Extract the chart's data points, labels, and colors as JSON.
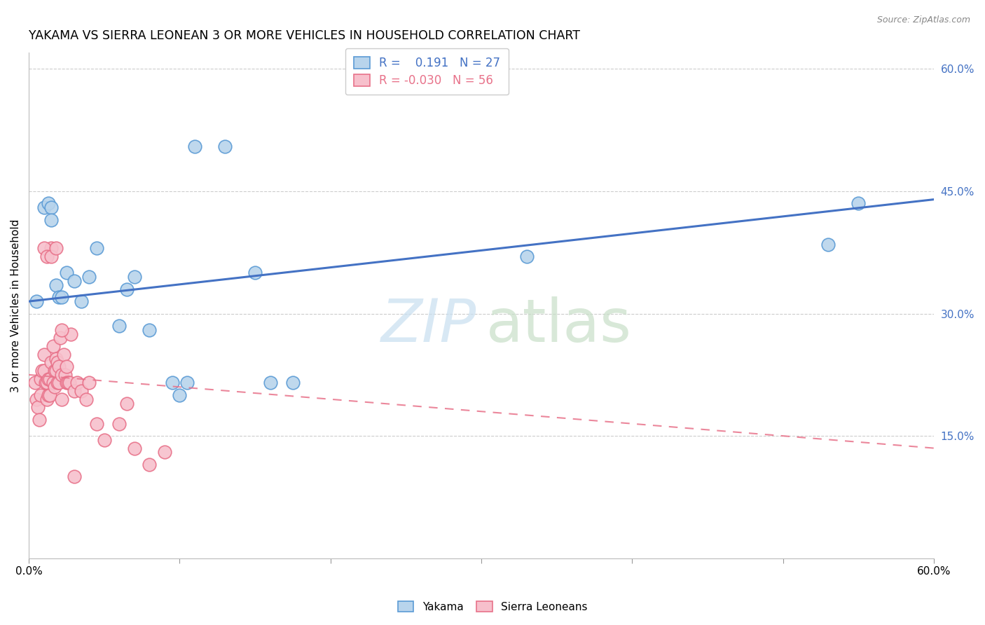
{
  "title": "YAKAMA VS SIERRA LEONEAN 3 OR MORE VEHICLES IN HOUSEHOLD CORRELATION CHART",
  "source": "Source: ZipAtlas.com",
  "ylabel": "3 or more Vehicles in Household",
  "x_min": 0.0,
  "x_max": 0.6,
  "y_min": 0.0,
  "y_max": 0.62,
  "y_ticks_right": [
    0.15,
    0.3,
    0.45,
    0.6
  ],
  "y_tick_labels_right": [
    "15.0%",
    "30.0%",
    "45.0%",
    "60.0%"
  ],
  "color_yakama_fill": "#b8d4ec",
  "color_yakama_edge": "#5b9bd5",
  "color_sierra_fill": "#f7c0cc",
  "color_sierra_edge": "#e8728a",
  "color_line_yakama": "#4472c4",
  "color_line_sierra": "#e8728a",
  "watermark_zip_color": "#daeaf5",
  "watermark_atlas_color": "#d5e8d4",
  "yakama_x": [
    0.005,
    0.01,
    0.013,
    0.015,
    0.015,
    0.018,
    0.02,
    0.022,
    0.025,
    0.03,
    0.035,
    0.04,
    0.045,
    0.06,
    0.065,
    0.07,
    0.08,
    0.095,
    0.1,
    0.105,
    0.11,
    0.13,
    0.15,
    0.16,
    0.175,
    0.33,
    0.53,
    0.55
  ],
  "yakama_y": [
    0.315,
    0.43,
    0.435,
    0.43,
    0.415,
    0.335,
    0.32,
    0.32,
    0.35,
    0.34,
    0.315,
    0.345,
    0.38,
    0.285,
    0.33,
    0.345,
    0.28,
    0.215,
    0.2,
    0.215,
    0.505,
    0.505,
    0.35,
    0.215,
    0.215,
    0.37,
    0.385,
    0.435
  ],
  "sierra_x": [
    0.004,
    0.005,
    0.006,
    0.007,
    0.008,
    0.008,
    0.009,
    0.01,
    0.01,
    0.011,
    0.012,
    0.012,
    0.013,
    0.013,
    0.014,
    0.014,
    0.015,
    0.015,
    0.016,
    0.016,
    0.017,
    0.017,
    0.018,
    0.018,
    0.019,
    0.019,
    0.02,
    0.02,
    0.021,
    0.022,
    0.022,
    0.023,
    0.024,
    0.025,
    0.025,
    0.026,
    0.027,
    0.028,
    0.03,
    0.032,
    0.035,
    0.038,
    0.04,
    0.045,
    0.05,
    0.06,
    0.065,
    0.07,
    0.08,
    0.09,
    0.01,
    0.012,
    0.015,
    0.018,
    0.022,
    0.03
  ],
  "sierra_y": [
    0.215,
    0.195,
    0.185,
    0.17,
    0.2,
    0.22,
    0.23,
    0.23,
    0.25,
    0.215,
    0.195,
    0.215,
    0.2,
    0.22,
    0.2,
    0.22,
    0.24,
    0.38,
    0.215,
    0.26,
    0.21,
    0.23,
    0.245,
    0.23,
    0.215,
    0.24,
    0.235,
    0.215,
    0.27,
    0.225,
    0.195,
    0.25,
    0.225,
    0.215,
    0.235,
    0.215,
    0.215,
    0.275,
    0.205,
    0.215,
    0.205,
    0.195,
    0.215,
    0.165,
    0.145,
    0.165,
    0.19,
    0.135,
    0.115,
    0.13,
    0.38,
    0.37,
    0.37,
    0.38,
    0.28,
    0.1
  ]
}
